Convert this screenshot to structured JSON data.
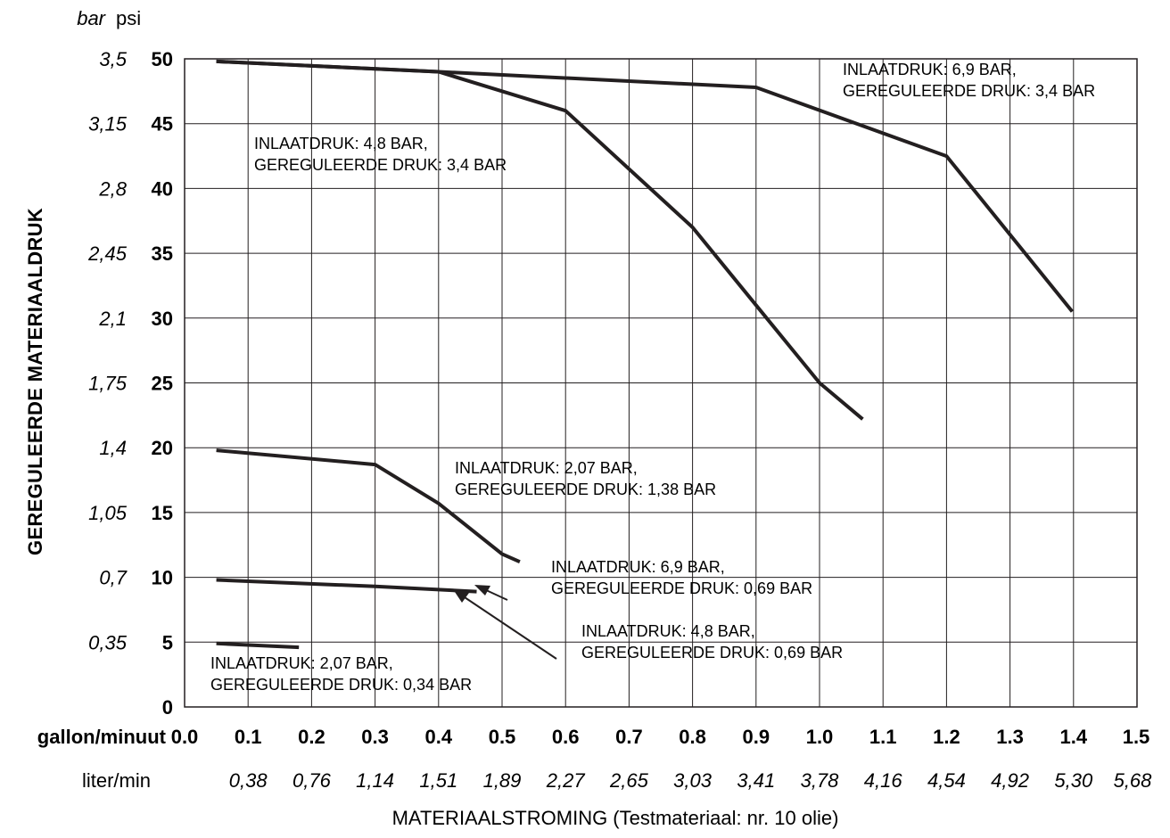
{
  "chart_data": {
    "type": "line",
    "title": "",
    "ylabel": "GEREGULEERDE MATERIAALDRUK",
    "xlabel": "MATERIAALSTROMING (Testmateriaal: nr. 10 olie)",
    "y_unit_bar": "bar",
    "y_unit_psi": "psi",
    "x_unit_gal": "gallon/minuut",
    "x_unit_liter": "liter/min",
    "xlim": [
      0,
      1.5
    ],
    "ylim": [
      0,
      50
    ],
    "grid": true,
    "x_ticks": [
      "0.0",
      "0.1",
      "0.2",
      "0.3",
      "0.4",
      "0.5",
      "0.6",
      "0.7",
      "0.8",
      "0.9",
      "1.0",
      "1.1",
      "1.2",
      "1.3",
      "1.4",
      "1.5"
    ],
    "x_ticks_liter": [
      "0,38",
      "0,76",
      "1,14",
      "1,51",
      "1,89",
      "2,27",
      "2,65",
      "3,03",
      "3,41",
      "3,78",
      "4,16",
      "4,54",
      "4,92",
      "5,30",
      "5,68"
    ],
    "y_ticks_psi": [
      "0",
      "5",
      "10",
      "15",
      "20",
      "25",
      "30",
      "35",
      "40",
      "45",
      "50"
    ],
    "y_ticks_bar": [
      "0,35",
      "0,7",
      "1,05",
      "1,4",
      "1,75",
      "2,1",
      "2,45",
      "2,8",
      "3,15",
      "3,5"
    ],
    "series": [
      {
        "x": [
          0.05,
          0.4,
          0.6,
          0.8,
          0.9,
          1.0,
          1.068
        ],
        "y": [
          49.8,
          49.0,
          46.0,
          37.0,
          31.0,
          25.0,
          22.2
        ]
      },
      {
        "x": [
          0.05,
          0.4,
          0.9,
          1.2,
          1.398
        ],
        "y": [
          49.8,
          49.0,
          47.8,
          42.5,
          30.5
        ]
      },
      {
        "x": [
          0.05,
          0.3,
          0.4,
          0.5,
          0.528
        ],
        "y": [
          19.8,
          18.7,
          15.7,
          11.8,
          11.2
        ]
      },
      {
        "x": [
          0.05,
          0.3,
          0.46
        ],
        "y": [
          9.8,
          9.3,
          8.9
        ]
      },
      {
        "x": [
          0.05,
          0.18
        ],
        "y": [
          4.9,
          4.6
        ]
      }
    ],
    "annotations": [
      {
        "line1": "INLAATDRUK: 6,9 BAR,",
        "line2": "GEREGULEERDE DRUK: 3,4 BAR"
      },
      {
        "line1": "INLAATDRUK: 4,8 BAR,",
        "line2": "GEREGULEERDE DRUK: 3,4 BAR"
      },
      {
        "line1": "INLAATDRUK: 2,07 BAR,",
        "line2": "GEREGULEERDE DRUK: 1,38 BAR"
      },
      {
        "line1": "INLAATDRUK: 6,9 BAR,",
        "line2": "GEREGULEERDE DRUK: 0,69 BAR"
      },
      {
        "line1": "INLAATDRUK: 4,8 BAR,",
        "line2": "GEREGULEERDE DRUK: 0,69 BAR"
      },
      {
        "line1": "INLAATDRUK: 2,07 BAR,",
        "line2": "GEREGULEERDE DRUK: 0,34 BAR"
      }
    ]
  }
}
